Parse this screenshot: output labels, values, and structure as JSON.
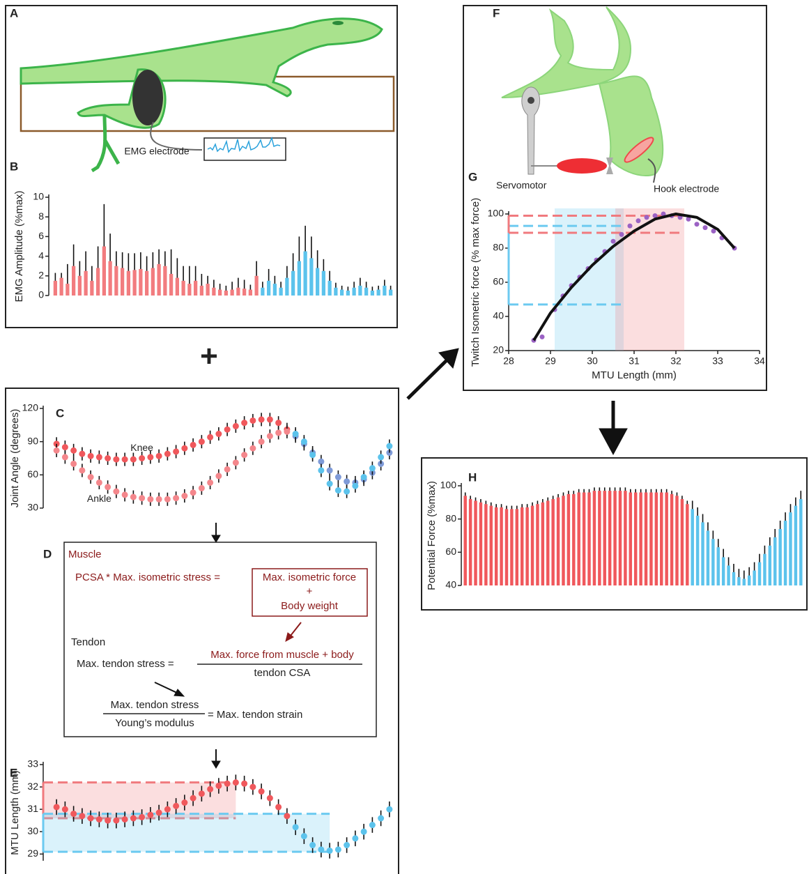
{
  "panel_letters": [
    "A",
    "B",
    "C",
    "D",
    "E",
    "F",
    "G",
    "H"
  ],
  "plus": "+",
  "annotations": {
    "emg_electrode": "EMG electrode",
    "servomotor": "Servomotor",
    "hook_electrode": "Hook electrode"
  },
  "equations": {
    "muscle": "Muscle",
    "muscle_lhs": "PCSA * Max. isometric stress =",
    "muscle_rhs": [
      "Max. isometric force",
      "+",
      "Body weight"
    ],
    "tendon": "Tendon",
    "tendon_lhs": "Max. tendon stress =",
    "tendon_num": "Max. force from muscle + body",
    "tendon_den": "tendon CSA",
    "strain_num": "Max. tendon stress",
    "strain_den": "Young’s modulus",
    "strain_rhs": "= Max. tendon strain"
  },
  "chart_data": [
    {
      "type": "bar",
      "ylabel": "EMG Amplitude (%max)",
      "ylim": [
        0,
        10
      ],
      "yticks": [
        0,
        2,
        4,
        6,
        8,
        10
      ],
      "series": [
        {
          "color": "#f27c7f",
          "values": [
            1.5,
            1.8,
            1.2,
            3,
            2,
            2.5,
            1.5,
            2.8,
            5,
            3.5,
            3,
            2.8,
            2.5,
            2.6,
            2.7,
            2.5,
            2.8,
            3.2,
            3,
            2.2,
            1.8,
            1.5,
            1.2,
            1.5,
            1.0,
            1.2,
            0.8,
            0.6,
            0.5,
            0.6,
            0.8,
            0.7,
            0.6,
            2.0
          ],
          "errors": [
            0.8,
            0.5,
            2,
            2.2,
            1.5,
            2,
            1.5,
            2.2,
            4.3,
            2.8,
            1.5,
            1.6,
            1.8,
            1.7,
            1.7,
            1.5,
            1.6,
            1.5,
            1.5,
            2.5,
            2,
            1.5,
            1.8,
            1.5,
            1.2,
            0.8,
            0.8,
            0.6,
            0.5,
            0.8,
            1.0,
            0.9,
            0.5,
            1.5
          ]
        },
        {
          "color": "#5cc3ec",
          "values": [
            0.8,
            1.5,
            1.2,
            0.8,
            1.8,
            2.5,
            3.5,
            4.5,
            3.8,
            2.8,
            2.5,
            1.5,
            0.8,
            0.6,
            0.5,
            0.8,
            1.0,
            0.8,
            0.5,
            0.6,
            1.0,
            0.6
          ],
          "errors": [
            0.6,
            1.2,
            0.8,
            0.6,
            1.2,
            1.8,
            2.5,
            2.6,
            2.2,
            1.8,
            1.2,
            1.0,
            0.5,
            0.4,
            0.4,
            0.6,
            0.8,
            0.6,
            0.4,
            0.4,
            0.6,
            0.4
          ]
        }
      ]
    },
    {
      "type": "dot",
      "ylabel": "Joint Angle (degrees)",
      "ylim": [
        30,
        120
      ],
      "yticks": [
        30,
        60,
        90,
        120
      ],
      "series": [
        {
          "name": "Knee",
          "color": "#f0585c",
          "error": 6,
          "values": [
            88,
            85,
            82,
            79,
            77,
            76,
            75,
            74,
            74,
            74,
            75,
            76,
            77,
            79,
            81,
            84,
            87,
            90,
            94,
            97,
            101,
            104,
            107,
            109,
            110,
            110,
            107,
            101,
            null,
            null,
            null,
            null,
            null,
            null,
            null,
            null,
            null,
            null,
            null,
            null
          ]
        },
        {
          "color": "#7f9bd8",
          "error": 6,
          "values": [
            null,
            null,
            null,
            null,
            null,
            null,
            null,
            null,
            null,
            null,
            null,
            null,
            null,
            null,
            null,
            null,
            null,
            null,
            null,
            null,
            null,
            null,
            null,
            null,
            null,
            null,
            null,
            null,
            95,
            88,
            80,
            72,
            64,
            58,
            54,
            53,
            56,
            62,
            70,
            80
          ]
        },
        {
          "name": "Ankle",
          "color": "#f4878c",
          "error": 6,
          "values": [
            82,
            76,
            70,
            64,
            58,
            53,
            49,
            45,
            42,
            40,
            39,
            38,
            38,
            38,
            39,
            41,
            44,
            48,
            53,
            59,
            65,
            71,
            78,
            84,
            90,
            95,
            98,
            99,
            null,
            null,
            null,
            null,
            null,
            null,
            null,
            null,
            null,
            null,
            null,
            null
          ]
        },
        {
          "color": "#5cc3ec",
          "error": 6,
          "values": [
            null,
            null,
            null,
            null,
            null,
            null,
            null,
            null,
            null,
            null,
            null,
            null,
            null,
            null,
            null,
            null,
            null,
            null,
            null,
            null,
            null,
            null,
            null,
            null,
            null,
            null,
            null,
            null,
            97,
            90,
            78,
            64,
            52,
            46,
            45,
            50,
            58,
            66,
            76,
            86
          ]
        }
      ]
    },
    {
      "type": "dot",
      "ylabel": "MTU Length (mm)",
      "ylim": [
        28.7,
        33
      ],
      "yticks": [
        29,
        30,
        31,
        32,
        33
      ],
      "bands": [
        {
          "color": "#f07a7e",
          "range": [
            30.6,
            32.2
          ]
        },
        {
          "color": "#6ccaf0",
          "range": [
            29.1,
            30.8
          ]
        }
      ],
      "series": [
        {
          "color": "#f0585c",
          "error": 0.35,
          "values": [
            31.1,
            31.0,
            30.8,
            30.7,
            30.6,
            30.55,
            30.5,
            30.5,
            30.55,
            30.6,
            30.65,
            30.75,
            30.85,
            31.0,
            31.15,
            31.3,
            31.5,
            31.7,
            31.9,
            32.05,
            32.15,
            32.2,
            32.15,
            32.0,
            31.8,
            31.5,
            31.1,
            30.7,
            null,
            null,
            null,
            null,
            null,
            null,
            null,
            null,
            null,
            null,
            null,
            null
          ]
        },
        {
          "color": "#5cc3ec",
          "error": 0.35,
          "values": [
            null,
            null,
            null,
            null,
            null,
            null,
            null,
            null,
            null,
            null,
            null,
            null,
            null,
            null,
            null,
            null,
            null,
            null,
            null,
            null,
            null,
            null,
            null,
            null,
            null,
            null,
            null,
            null,
            30.2,
            29.8,
            29.4,
            29.2,
            29.15,
            29.2,
            29.4,
            29.7,
            30.0,
            30.3,
            30.6,
            31.0
          ]
        }
      ]
    },
    {
      "type": "scatter",
      "xlabel": "MTU Length (mm)",
      "ylabel": "Twitch Isometric force (% max force)",
      "xlim": [
        28,
        34
      ],
      "xticks": [
        28,
        29,
        30,
        31,
        32,
        33,
        34
      ],
      "ylim": [
        20,
        100
      ],
      "yticks": [
        20,
        40,
        60,
        80,
        100
      ],
      "bands": [
        {
          "color": "#6ccaf0",
          "xrange": [
            29.1,
            30.75
          ],
          "ylines": [
            47,
            93
          ]
        },
        {
          "color": "#f07a7e",
          "xrange": [
            30.55,
            32.2
          ],
          "ylines": [
            89,
            99
          ]
        }
      ],
      "series": [
        {
          "color": "#9b62c4",
          "x": [
            28.6,
            28.8,
            29.1,
            29.3,
            29.5,
            29.7,
            29.9,
            30.1,
            30.3,
            30.5,
            30.7,
            30.9,
            31.1,
            31.3,
            31.5,
            31.7,
            31.9,
            32.1,
            32.3,
            32.5,
            32.7,
            32.9,
            33.1,
            33.4
          ],
          "values": [
            26,
            28,
            44,
            52,
            58,
            63,
            68,
            73,
            78,
            84,
            88,
            93,
            96,
            98,
            99,
            100,
            99,
            98,
            97,
            94,
            92,
            90,
            86,
            80
          ]
        }
      ],
      "fit": {
        "color": "#111111",
        "x": [
          28.6,
          29,
          29.5,
          30,
          30.5,
          31,
          31.5,
          32,
          32.5,
          33,
          33.4
        ],
        "values": [
          26,
          42,
          57,
          70,
          81,
          90,
          97,
          100,
          98,
          91,
          80
        ]
      }
    },
    {
      "type": "bar",
      "ylabel": "Potential Force (%max)",
      "ylim": [
        40,
        100
      ],
      "yticks": [
        40,
        60,
        80,
        100
      ],
      "series": [
        {
          "color": "#f0585c",
          "error": 2,
          "values": [
            94,
            92,
            91,
            90,
            89,
            88,
            87,
            87,
            86,
            86,
            86,
            87,
            87,
            88,
            89,
            90,
            91,
            92,
            93,
            94,
            95,
            95,
            96,
            96,
            96,
            97,
            97,
            97,
            97,
            97,
            97,
            97,
            96,
            96,
            96,
            96,
            96,
            96,
            96,
            96,
            95,
            94,
            92,
            89
          ]
        },
        {
          "color": "#5cc3ec",
          "error": 5,
          "values": [
            86,
            82,
            78,
            73,
            68,
            63,
            57,
            52,
            48,
            45,
            44,
            46,
            49,
            54,
            59,
            64,
            69,
            74,
            79,
            84,
            88,
            92
          ]
        }
      ]
    }
  ]
}
